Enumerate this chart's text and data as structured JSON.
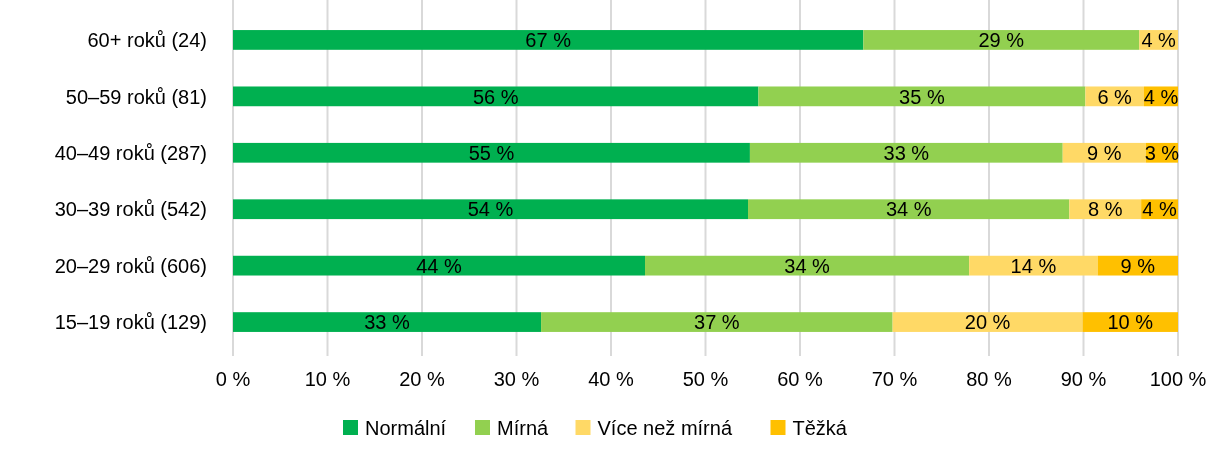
{
  "chart_data": {
    "type": "bar",
    "orientation": "horizontal",
    "stacked": true,
    "categories": [
      "60+ roků (24)",
      "50–59 roků (81)",
      "40–49 roků (287)",
      "30–39 roků (542)",
      "20–29 roků (606)",
      "15–19 roků (129)"
    ],
    "series": [
      {
        "name": "Normální",
        "color": "#00b050",
        "values": [
          66.7,
          55.6,
          54.7,
          54.5,
          43.6,
          32.6
        ],
        "value_labels": [
          "67 %",
          "56 %",
          "55 %",
          "54 %",
          "44 %",
          "33 %"
        ]
      },
      {
        "name": "Mírná",
        "color": "#92d050",
        "values": [
          29.2,
          34.6,
          33.1,
          34.0,
          34.3,
          37.2
        ],
        "value_labels": [
          "29 %",
          "35 %",
          "33 %",
          "34 %",
          "34 %",
          "37 %"
        ]
      },
      {
        "name": "Více než mírná",
        "color": "#ffd966",
        "values": [
          4.1,
          6.2,
          8.8,
          7.6,
          13.6,
          20.1
        ],
        "value_labels": [
          "4 %",
          "6 %",
          "9 %",
          "8 %",
          "14 %",
          "20 %"
        ]
      },
      {
        "name": "Těžká",
        "color": "#ffc000",
        "values": [
          0,
          3.6,
          3.4,
          3.9,
          8.5,
          10.1
        ],
        "value_labels": [
          null,
          "4 %",
          "3 %",
          "4 %",
          "9 %",
          "10 %"
        ]
      }
    ],
    "xlim": [
      0,
      100
    ],
    "xticks": [
      {
        "value": 0,
        "label": "0 %"
      },
      {
        "value": 10,
        "label": "10 %"
      },
      {
        "value": 20,
        "label": "20 %"
      },
      {
        "value": 30,
        "label": "30 %"
      },
      {
        "value": 40,
        "label": "40 %"
      },
      {
        "value": 50,
        "label": "50 %"
      },
      {
        "value": 60,
        "label": "60 %"
      },
      {
        "value": 70,
        "label": "70 %"
      },
      {
        "value": 80,
        "label": "80 %"
      },
      {
        "value": 90,
        "label": "90 %"
      },
      {
        "value": 100,
        "label": "100 %"
      }
    ],
    "grid": "x",
    "legend": "bottom"
  }
}
